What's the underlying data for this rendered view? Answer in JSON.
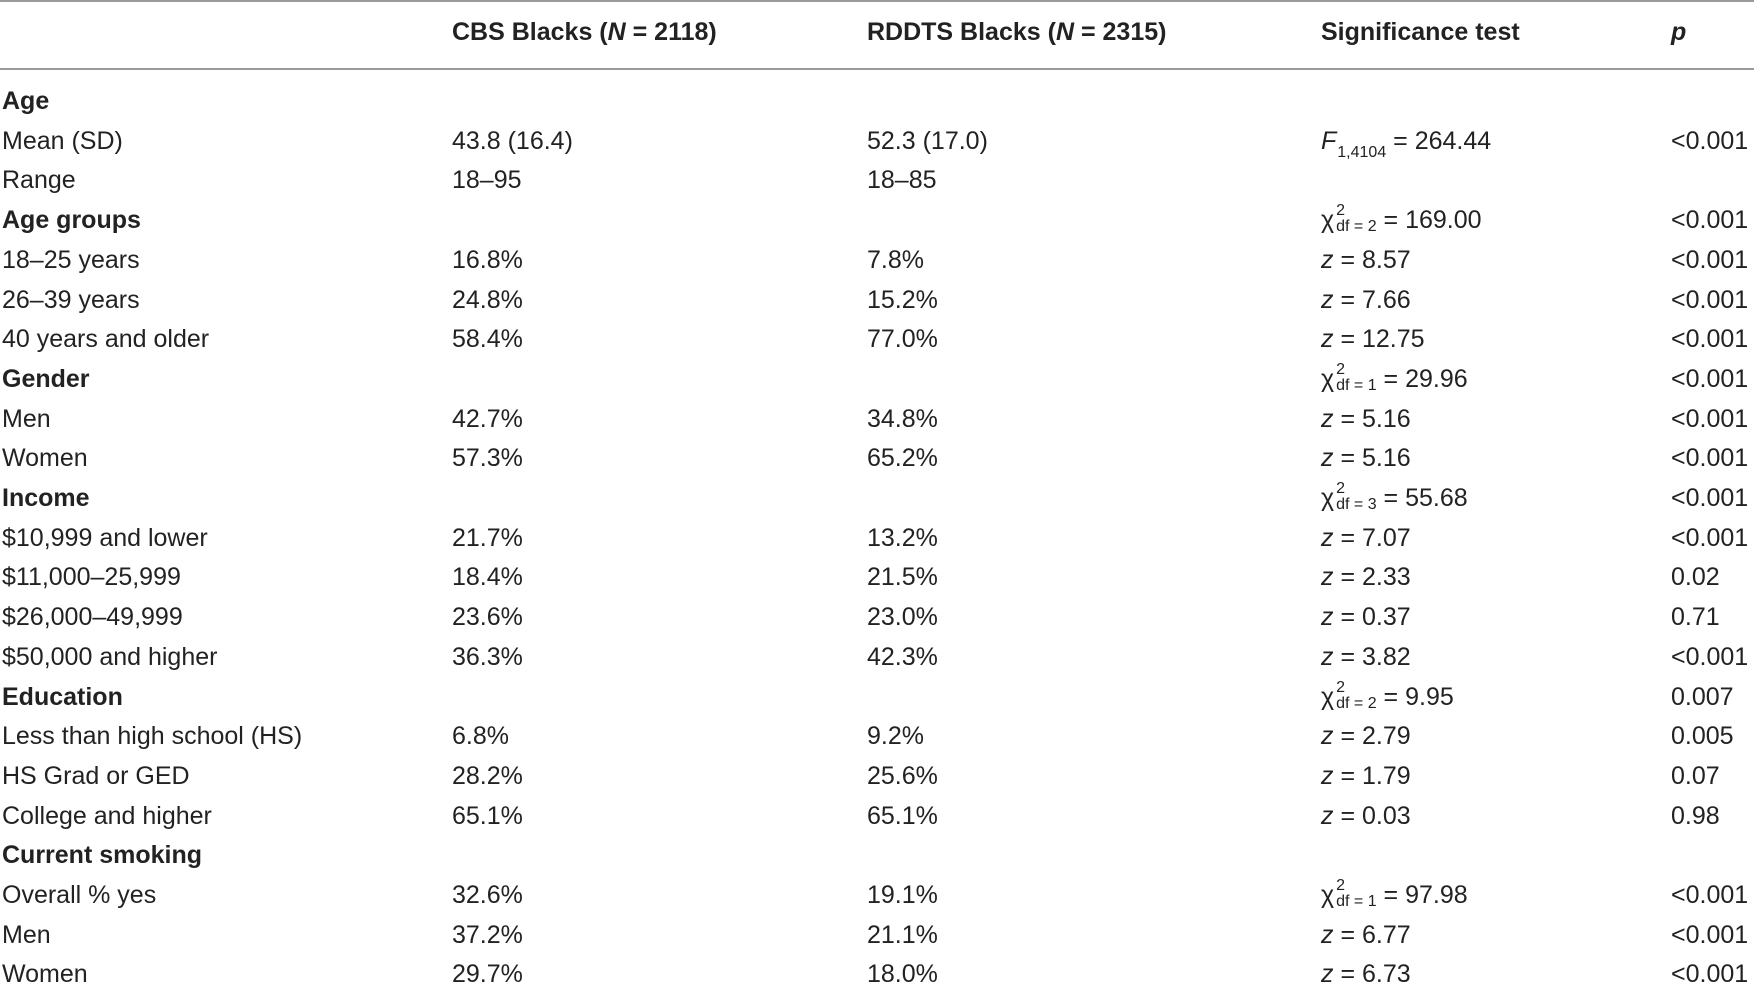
{
  "header": {
    "col1": "",
    "col2_prefix": "CBS Blacks (",
    "col2_n": "N",
    "col2_suffix": " = 2118)",
    "col3_prefix": "RDDTS Blacks (",
    "col3_n": "N",
    "col3_suffix": " = 2315)",
    "col4": "Significance test",
    "col5": "p"
  },
  "rows": [
    {
      "type": "section",
      "label": "Age",
      "cbs": "",
      "rdd": "",
      "test": "",
      "p": ""
    },
    {
      "type": "data",
      "label": "Mean (SD)",
      "cbs": "43.8 (16.4)",
      "rdd": "52.3 (17.0)",
      "test_kind": "F",
      "test_sym": "F",
      "test_sub": "1,4104",
      "test_val": " = 264.44",
      "p": "<0.001"
    },
    {
      "type": "data",
      "label": "Range",
      "cbs": "18–95",
      "rdd": "18–85",
      "test_kind": "none",
      "p": ""
    },
    {
      "type": "section",
      "label": "Age groups",
      "test_kind": "chi",
      "test_sym": "χ",
      "test_sup": "2",
      "test_sub": "df = 2",
      "test_val": " = 169.00",
      "p": "<0.001"
    },
    {
      "type": "data",
      "label": "18–25 years",
      "cbs": "16.8%",
      "rdd": "7.8%",
      "test_kind": "z",
      "test_sym": "z",
      "test_val": " = 8.57",
      "p": "<0.001"
    },
    {
      "type": "data",
      "label": "26–39 years",
      "cbs": "24.8%",
      "rdd": "15.2%",
      "test_kind": "z",
      "test_sym": "z",
      "test_val": " = 7.66",
      "p": "<0.001"
    },
    {
      "type": "data",
      "label": "40 years and older",
      "cbs": "58.4%",
      "rdd": "77.0%",
      "test_kind": "z",
      "test_sym": "z",
      "test_val": " = 12.75",
      "p": "<0.001"
    },
    {
      "type": "section",
      "label": "Gender",
      "test_kind": "chi",
      "test_sym": "χ",
      "test_sup": "2",
      "test_sub": "df = 1",
      "test_val": " = 29.96",
      "p": "<0.001"
    },
    {
      "type": "data",
      "label": "Men",
      "cbs": "42.7%",
      "rdd": "34.8%",
      "test_kind": "z",
      "test_sym": "z",
      "test_val": " = 5.16",
      "p": "<0.001"
    },
    {
      "type": "data",
      "label": "Women",
      "cbs": "57.3%",
      "rdd": "65.2%",
      "test_kind": "z",
      "test_sym": "z",
      "test_val": " = 5.16",
      "p": "<0.001"
    },
    {
      "type": "section",
      "label": "Income",
      "test_kind": "chi",
      "test_sym": "χ",
      "test_sup": "2",
      "test_sub": "df = 3",
      "test_val": " = 55.68",
      "p": "<0.001"
    },
    {
      "type": "data",
      "label": "$10,999 and lower",
      "cbs": "21.7%",
      "rdd": "13.2%",
      "test_kind": "z",
      "test_sym": "z",
      "test_val": " = 7.07",
      "p": "<0.001"
    },
    {
      "type": "data",
      "label": "$11,000–25,999",
      "cbs": "18.4%",
      "rdd": "21.5%",
      "test_kind": "z",
      "test_sym": "z",
      "test_val": " = 2.33",
      "p": "0.02"
    },
    {
      "type": "data",
      "label": "$26,000–49,999",
      "cbs": "23.6%",
      "rdd": "23.0%",
      "test_kind": "z",
      "test_sym": "z",
      "test_val": " = 0.37",
      "p": "0.71"
    },
    {
      "type": "data",
      "label": "$50,000 and higher",
      "cbs": "36.3%",
      "rdd": "42.3%",
      "test_kind": "z",
      "test_sym": "z",
      "test_val": " = 3.82",
      "p": "<0.001"
    },
    {
      "type": "section",
      "label": "Education",
      "test_kind": "chi",
      "test_sym": "χ",
      "test_sup": "2",
      "test_sub": "df = 2",
      "test_val": " = 9.95",
      "p": "0.007"
    },
    {
      "type": "data",
      "label": "Less than high school (HS)",
      "cbs": "6.8%",
      "rdd": "9.2%",
      "test_kind": "z",
      "test_sym": "z",
      "test_val": " = 2.79",
      "p": "0.005"
    },
    {
      "type": "data",
      "label": "HS Grad or GED",
      "cbs": "28.2%",
      "rdd": "25.6%",
      "test_kind": "z",
      "test_sym": "z",
      "test_val": " = 1.79",
      "p": "0.07"
    },
    {
      "type": "data",
      "label": "College and higher",
      "cbs": "65.1%",
      "rdd": "65.1%",
      "test_kind": "z",
      "test_sym": "z",
      "test_val": " = 0.03",
      "p": "0.98"
    },
    {
      "type": "section",
      "label": "Current smoking",
      "test_kind": "none",
      "p": ""
    },
    {
      "type": "data",
      "label": "Overall % yes",
      "cbs": "32.6%",
      "rdd": "19.1%",
      "test_kind": "chi",
      "test_sym": "χ",
      "test_sup": "2",
      "test_sub": "df = 1",
      "test_val": " = 97.98",
      "p": "<0.001"
    },
    {
      "type": "data",
      "label": "Men",
      "cbs": "37.2%",
      "rdd": "21.1%",
      "test_kind": "z",
      "test_sym": "z",
      "test_val": " = 6.77",
      "p": "<0.001"
    },
    {
      "type": "data",
      "label": "Women",
      "cbs": "29.7%",
      "rdd": "18.0%",
      "test_kind": "z",
      "test_sym": "z",
      "test_val": " = 6.73",
      "p": "<0.001"
    }
  ]
}
